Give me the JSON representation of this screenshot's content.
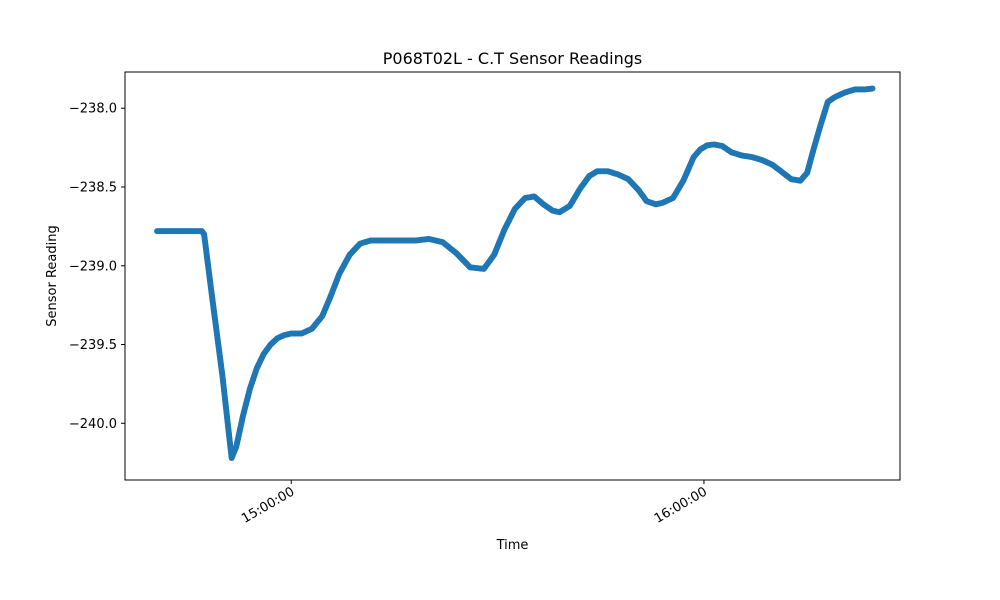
{
  "chart_data": {
    "type": "scatter",
    "title": "P068T02L - C.T Sensor Readings",
    "xlabel": "Time",
    "ylabel": "Sensor Reading",
    "x_axis_type": "time",
    "xlim": [
      "14:35:50",
      "16:28:30"
    ],
    "ylim": [
      -240.36,
      -237.77
    ],
    "x_ticks": [
      "15:00:00",
      "16:00:00"
    ],
    "y_ticks": [
      -238.0,
      -238.5,
      -239.0,
      -239.5,
      -240.0
    ],
    "y_tick_labels": [
      "−238.0",
      "−238.5",
      "−239.0",
      "−239.5",
      "−240.0"
    ],
    "grid": false,
    "legend": "none",
    "marker_color": "#1f77b4",
    "series": [
      {
        "x": [
          "14:40:30",
          "14:47:00",
          "14:47:20",
          "14:48:30",
          "14:50:00",
          "14:51:20",
          "14:52:00",
          "14:53:00",
          "14:54:00",
          "14:55:00",
          "14:56:00",
          "14:57:00",
          "14:58:00",
          "14:59:00",
          "15:00:00",
          "15:01:30",
          "15:03:00",
          "15:04:30",
          "15:05:40",
          "15:07:00",
          "15:08:30",
          "15:10:00",
          "15:11:30",
          "15:13:00",
          "15:14:30",
          "15:16:00",
          "15:18:00",
          "15:20:00",
          "15:22:00",
          "15:24:00",
          "15:26:00",
          "15:28:00",
          "15:29:30",
          "15:31:00",
          "15:32:30",
          "15:34:00",
          "15:35:20",
          "15:36:40",
          "15:38:00",
          "15:39:00",
          "15:40:30",
          "15:42:00",
          "15:43:20",
          "15:44:30",
          "15:46:00",
          "15:47:30",
          "15:49:00",
          "15:50:30",
          "15:51:40",
          "15:53:00",
          "15:54:00",
          "15:55:30",
          "15:57:00",
          "15:58:30",
          "15:59:30",
          "16:00:30",
          "16:01:30",
          "16:02:40",
          "16:04:00",
          "16:05:30",
          "16:07:00",
          "16:08:30",
          "16:10:00",
          "16:11:30",
          "16:12:40",
          "16:14:00",
          "16:15:00",
          "16:16:00",
          "16:17:00",
          "16:18:00",
          "16:19:00",
          "16:20:30",
          "16:22:00",
          "16:23:30",
          "16:24:30"
        ],
        "y": [
          -238.78,
          -238.78,
          -238.8,
          -239.2,
          -239.7,
          -240.22,
          -240.15,
          -239.95,
          -239.78,
          -239.65,
          -239.56,
          -239.5,
          -239.46,
          -239.44,
          -239.43,
          -239.43,
          -239.4,
          -239.32,
          -239.2,
          -239.05,
          -238.93,
          -238.86,
          -238.84,
          -238.84,
          -238.84,
          -238.84,
          -238.84,
          -238.83,
          -238.85,
          -238.92,
          -239.01,
          -239.02,
          -238.93,
          -238.77,
          -238.64,
          -238.57,
          -238.56,
          -238.61,
          -238.65,
          -238.66,
          -238.62,
          -238.51,
          -238.43,
          -238.4,
          -238.4,
          -238.42,
          -238.45,
          -238.52,
          -238.59,
          -238.61,
          -238.6,
          -238.57,
          -238.46,
          -238.31,
          -238.26,
          -238.235,
          -238.23,
          -238.24,
          -238.28,
          -238.3,
          -238.31,
          -238.33,
          -238.36,
          -238.41,
          -238.45,
          -238.46,
          -238.41,
          -238.25,
          -238.1,
          -237.96,
          -237.93,
          -237.9,
          -237.88,
          -237.88,
          -237.875
        ]
      }
    ]
  }
}
